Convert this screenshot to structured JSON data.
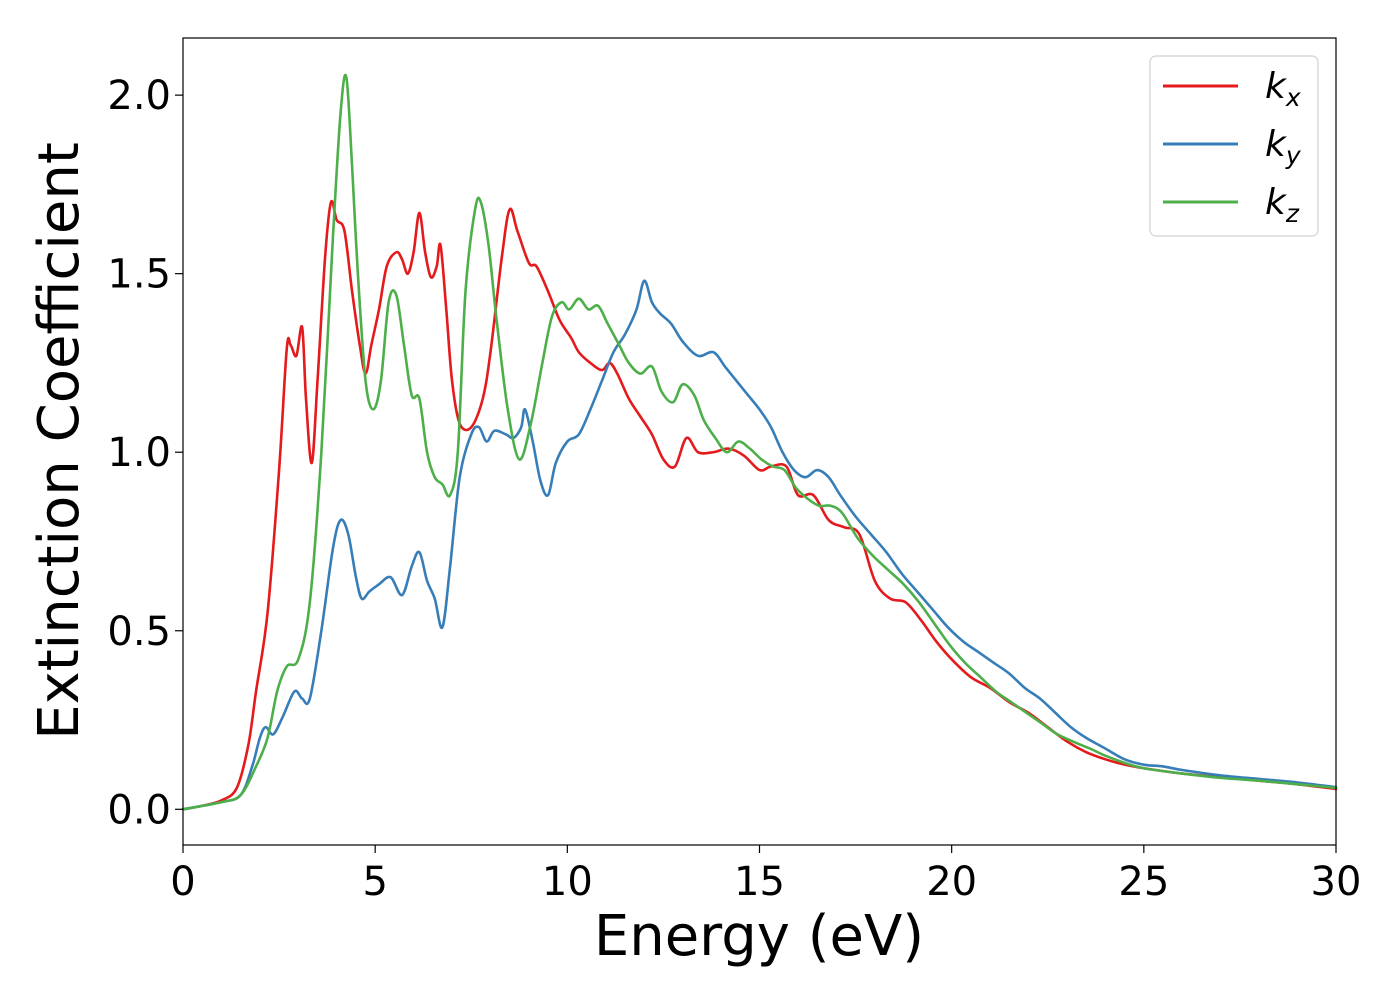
{
  "chart_data": {
    "type": "line",
    "title": "",
    "xlabel": "Energy (eV)",
    "ylabel": "Extinction Coefficient",
    "xlim": [
      0,
      30
    ],
    "ylim": [
      -0.1,
      2.16
    ],
    "xticks": [
      0,
      5,
      10,
      15,
      20,
      25,
      30
    ],
    "xtick_labels": [
      "0",
      "5",
      "10",
      "15",
      "20",
      "25",
      "30"
    ],
    "yticks": [
      0.0,
      0.5,
      1.0,
      1.5,
      2.0
    ],
    "ytick_labels": [
      "0.0",
      "0.5",
      "1.0",
      "1.5",
      "2.0"
    ],
    "grid": false,
    "legend_position": "top-right",
    "series": [
      {
        "name": "k_x",
        "label_base": "k",
        "label_sub": "x",
        "color": "#e41a1c",
        "points": [
          [
            0,
            0
          ],
          [
            0.5,
            0.01
          ],
          [
            1.0,
            0.025
          ],
          [
            1.4,
            0.06
          ],
          [
            1.7,
            0.18
          ],
          [
            1.9,
            0.33
          ],
          [
            2.2,
            0.55
          ],
          [
            2.5,
            0.95
          ],
          [
            2.7,
            1.29
          ],
          [
            2.8,
            1.3
          ],
          [
            2.95,
            1.27
          ],
          [
            3.1,
            1.35
          ],
          [
            3.2,
            1.15
          ],
          [
            3.35,
            0.97
          ],
          [
            3.5,
            1.2
          ],
          [
            3.7,
            1.55
          ],
          [
            3.85,
            1.7
          ],
          [
            4.0,
            1.65
          ],
          [
            4.2,
            1.62
          ],
          [
            4.4,
            1.45
          ],
          [
            4.6,
            1.3
          ],
          [
            4.75,
            1.22
          ],
          [
            4.9,
            1.3
          ],
          [
            5.1,
            1.4
          ],
          [
            5.3,
            1.52
          ],
          [
            5.55,
            1.56
          ],
          [
            5.7,
            1.54
          ],
          [
            5.85,
            1.5
          ],
          [
            6.0,
            1.56
          ],
          [
            6.15,
            1.67
          ],
          [
            6.3,
            1.56
          ],
          [
            6.45,
            1.49
          ],
          [
            6.6,
            1.52
          ],
          [
            6.7,
            1.58
          ],
          [
            6.85,
            1.4
          ],
          [
            7.0,
            1.2
          ],
          [
            7.2,
            1.08
          ],
          [
            7.5,
            1.07
          ],
          [
            7.8,
            1.15
          ],
          [
            8.0,
            1.28
          ],
          [
            8.3,
            1.55
          ],
          [
            8.5,
            1.68
          ],
          [
            8.7,
            1.62
          ],
          [
            9.0,
            1.53
          ],
          [
            9.2,
            1.52
          ],
          [
            9.5,
            1.45
          ],
          [
            9.8,
            1.37
          ],
          [
            10.1,
            1.32
          ],
          [
            10.3,
            1.28
          ],
          [
            10.6,
            1.25
          ],
          [
            10.9,
            1.23
          ],
          [
            11.1,
            1.25
          ],
          [
            11.3,
            1.22
          ],
          [
            11.6,
            1.15
          ],
          [
            11.9,
            1.1
          ],
          [
            12.2,
            1.05
          ],
          [
            12.5,
            0.98
          ],
          [
            12.8,
            0.96
          ],
          [
            13.1,
            1.04
          ],
          [
            13.4,
            1.0
          ],
          [
            13.8,
            1.0
          ],
          [
            14.2,
            1.01
          ],
          [
            14.6,
            0.99
          ],
          [
            15.0,
            0.95
          ],
          [
            15.3,
            0.96
          ],
          [
            15.7,
            0.96
          ],
          [
            16.0,
            0.88
          ],
          [
            16.4,
            0.88
          ],
          [
            16.8,
            0.81
          ],
          [
            17.2,
            0.79
          ],
          [
            17.6,
            0.77
          ],
          [
            18.0,
            0.64
          ],
          [
            18.4,
            0.59
          ],
          [
            18.8,
            0.58
          ],
          [
            19.2,
            0.53
          ],
          [
            19.6,
            0.47
          ],
          [
            20.0,
            0.42
          ],
          [
            20.5,
            0.37
          ],
          [
            21.0,
            0.34
          ],
          [
            21.5,
            0.3
          ],
          [
            22.0,
            0.27
          ],
          [
            22.5,
            0.23
          ],
          [
            23.0,
            0.19
          ],
          [
            23.5,
            0.16
          ],
          [
            24.0,
            0.14
          ],
          [
            24.5,
            0.125
          ],
          [
            25.0,
            0.115
          ],
          [
            26.0,
            0.1
          ],
          [
            27.0,
            0.09
          ],
          [
            28.0,
            0.08
          ],
          [
            29.0,
            0.07
          ],
          [
            30.0,
            0.057
          ]
        ]
      },
      {
        "name": "k_y",
        "label_base": "k",
        "label_sub": "y",
        "color": "#377eb8",
        "points": [
          [
            0,
            0
          ],
          [
            1.0,
            0.02
          ],
          [
            1.5,
            0.04
          ],
          [
            1.8,
            0.12
          ],
          [
            2.0,
            0.2
          ],
          [
            2.15,
            0.23
          ],
          [
            2.35,
            0.21
          ],
          [
            2.6,
            0.26
          ],
          [
            2.9,
            0.33
          ],
          [
            3.1,
            0.31
          ],
          [
            3.3,
            0.31
          ],
          [
            3.6,
            0.5
          ],
          [
            3.9,
            0.73
          ],
          [
            4.1,
            0.81
          ],
          [
            4.3,
            0.77
          ],
          [
            4.5,
            0.65
          ],
          [
            4.65,
            0.59
          ],
          [
            4.85,
            0.61
          ],
          [
            5.1,
            0.63
          ],
          [
            5.4,
            0.65
          ],
          [
            5.7,
            0.6
          ],
          [
            5.95,
            0.68
          ],
          [
            6.15,
            0.72
          ],
          [
            6.35,
            0.64
          ],
          [
            6.55,
            0.59
          ],
          [
            6.75,
            0.51
          ],
          [
            6.95,
            0.68
          ],
          [
            7.2,
            0.93
          ],
          [
            7.5,
            1.05
          ],
          [
            7.7,
            1.07
          ],
          [
            7.9,
            1.03
          ],
          [
            8.1,
            1.06
          ],
          [
            8.4,
            1.05
          ],
          [
            8.6,
            1.04
          ],
          [
            8.8,
            1.07
          ],
          [
            8.9,
            1.12
          ],
          [
            9.1,
            1.03
          ],
          [
            9.3,
            0.92
          ],
          [
            9.5,
            0.88
          ],
          [
            9.7,
            0.97
          ],
          [
            10.0,
            1.03
          ],
          [
            10.3,
            1.05
          ],
          [
            10.6,
            1.12
          ],
          [
            10.9,
            1.2
          ],
          [
            11.2,
            1.28
          ],
          [
            11.5,
            1.33
          ],
          [
            11.8,
            1.4
          ],
          [
            12.0,
            1.48
          ],
          [
            12.2,
            1.42
          ],
          [
            12.4,
            1.39
          ],
          [
            12.7,
            1.36
          ],
          [
            13.0,
            1.31
          ],
          [
            13.4,
            1.27
          ],
          [
            13.8,
            1.28
          ],
          [
            14.1,
            1.24
          ],
          [
            14.4,
            1.2
          ],
          [
            14.7,
            1.16
          ],
          [
            15.0,
            1.12
          ],
          [
            15.3,
            1.07
          ],
          [
            15.6,
            1.0
          ],
          [
            15.9,
            0.95
          ],
          [
            16.2,
            0.93
          ],
          [
            16.5,
            0.95
          ],
          [
            16.8,
            0.93
          ],
          [
            17.1,
            0.88
          ],
          [
            17.5,
            0.82
          ],
          [
            17.9,
            0.77
          ],
          [
            18.3,
            0.72
          ],
          [
            18.7,
            0.66
          ],
          [
            19.1,
            0.61
          ],
          [
            19.5,
            0.56
          ],
          [
            19.9,
            0.51
          ],
          [
            20.3,
            0.47
          ],
          [
            20.7,
            0.44
          ],
          [
            21.1,
            0.41
          ],
          [
            21.5,
            0.38
          ],
          [
            21.9,
            0.34
          ],
          [
            22.3,
            0.31
          ],
          [
            22.7,
            0.27
          ],
          [
            23.1,
            0.23
          ],
          [
            23.5,
            0.2
          ],
          [
            24.0,
            0.17
          ],
          [
            24.5,
            0.14
          ],
          [
            25.0,
            0.125
          ],
          [
            25.5,
            0.12
          ],
          [
            26.0,
            0.11
          ],
          [
            27.0,
            0.095
          ],
          [
            28.0,
            0.085
          ],
          [
            29.0,
            0.075
          ],
          [
            30.0,
            0.062
          ]
        ]
      },
      {
        "name": "k_z",
        "label_base": "k",
        "label_sub": "z",
        "color": "#4daf4a",
        "points": [
          [
            0,
            0
          ],
          [
            1.0,
            0.02
          ],
          [
            1.5,
            0.04
          ],
          [
            1.9,
            0.12
          ],
          [
            2.2,
            0.2
          ],
          [
            2.45,
            0.33
          ],
          [
            2.7,
            0.4
          ],
          [
            3.0,
            0.42
          ],
          [
            3.3,
            0.58
          ],
          [
            3.6,
            1.0
          ],
          [
            3.9,
            1.6
          ],
          [
            4.1,
            1.95
          ],
          [
            4.25,
            2.05
          ],
          [
            4.4,
            1.8
          ],
          [
            4.55,
            1.5
          ],
          [
            4.75,
            1.2
          ],
          [
            4.95,
            1.12
          ],
          [
            5.15,
            1.2
          ],
          [
            5.35,
            1.42
          ],
          [
            5.55,
            1.44
          ],
          [
            5.75,
            1.3
          ],
          [
            5.95,
            1.16
          ],
          [
            6.15,
            1.15
          ],
          [
            6.35,
            1.0
          ],
          [
            6.55,
            0.93
          ],
          [
            6.75,
            0.91
          ],
          [
            6.95,
            0.88
          ],
          [
            7.15,
            1.0
          ],
          [
            7.35,
            1.45
          ],
          [
            7.6,
            1.68
          ],
          [
            7.75,
            1.7
          ],
          [
            7.95,
            1.58
          ],
          [
            8.15,
            1.38
          ],
          [
            8.45,
            1.12
          ],
          [
            8.75,
            0.98
          ],
          [
            9.05,
            1.08
          ],
          [
            9.35,
            1.25
          ],
          [
            9.6,
            1.38
          ],
          [
            9.85,
            1.42
          ],
          [
            10.05,
            1.4
          ],
          [
            10.3,
            1.43
          ],
          [
            10.55,
            1.4
          ],
          [
            10.8,
            1.41
          ],
          [
            11.05,
            1.36
          ],
          [
            11.35,
            1.3
          ],
          [
            11.6,
            1.25
          ],
          [
            11.9,
            1.22
          ],
          [
            12.2,
            1.24
          ],
          [
            12.45,
            1.17
          ],
          [
            12.75,
            1.14
          ],
          [
            13.0,
            1.19
          ],
          [
            13.3,
            1.16
          ],
          [
            13.55,
            1.09
          ],
          [
            13.85,
            1.04
          ],
          [
            14.15,
            1.0
          ],
          [
            14.45,
            1.03
          ],
          [
            14.75,
            1.01
          ],
          [
            15.05,
            0.98
          ],
          [
            15.35,
            0.96
          ],
          [
            15.65,
            0.95
          ],
          [
            15.95,
            0.9
          ],
          [
            16.25,
            0.87
          ],
          [
            16.55,
            0.85
          ],
          [
            16.85,
            0.85
          ],
          [
            17.15,
            0.83
          ],
          [
            17.55,
            0.76
          ],
          [
            17.95,
            0.71
          ],
          [
            18.35,
            0.67
          ],
          [
            18.75,
            0.63
          ],
          [
            19.15,
            0.58
          ],
          [
            19.55,
            0.52
          ],
          [
            19.95,
            0.46
          ],
          [
            20.35,
            0.41
          ],
          [
            20.75,
            0.37
          ],
          [
            21.15,
            0.33
          ],
          [
            21.55,
            0.3
          ],
          [
            21.95,
            0.27
          ],
          [
            22.35,
            0.24
          ],
          [
            22.75,
            0.21
          ],
          [
            23.15,
            0.19
          ],
          [
            23.6,
            0.17
          ],
          [
            24.0,
            0.15
          ],
          [
            24.5,
            0.13
          ],
          [
            25.0,
            0.115
          ],
          [
            26.0,
            0.1
          ],
          [
            27.0,
            0.088
          ],
          [
            28.0,
            0.08
          ],
          [
            29.0,
            0.07
          ],
          [
            30.0,
            0.06
          ]
        ]
      }
    ]
  }
}
